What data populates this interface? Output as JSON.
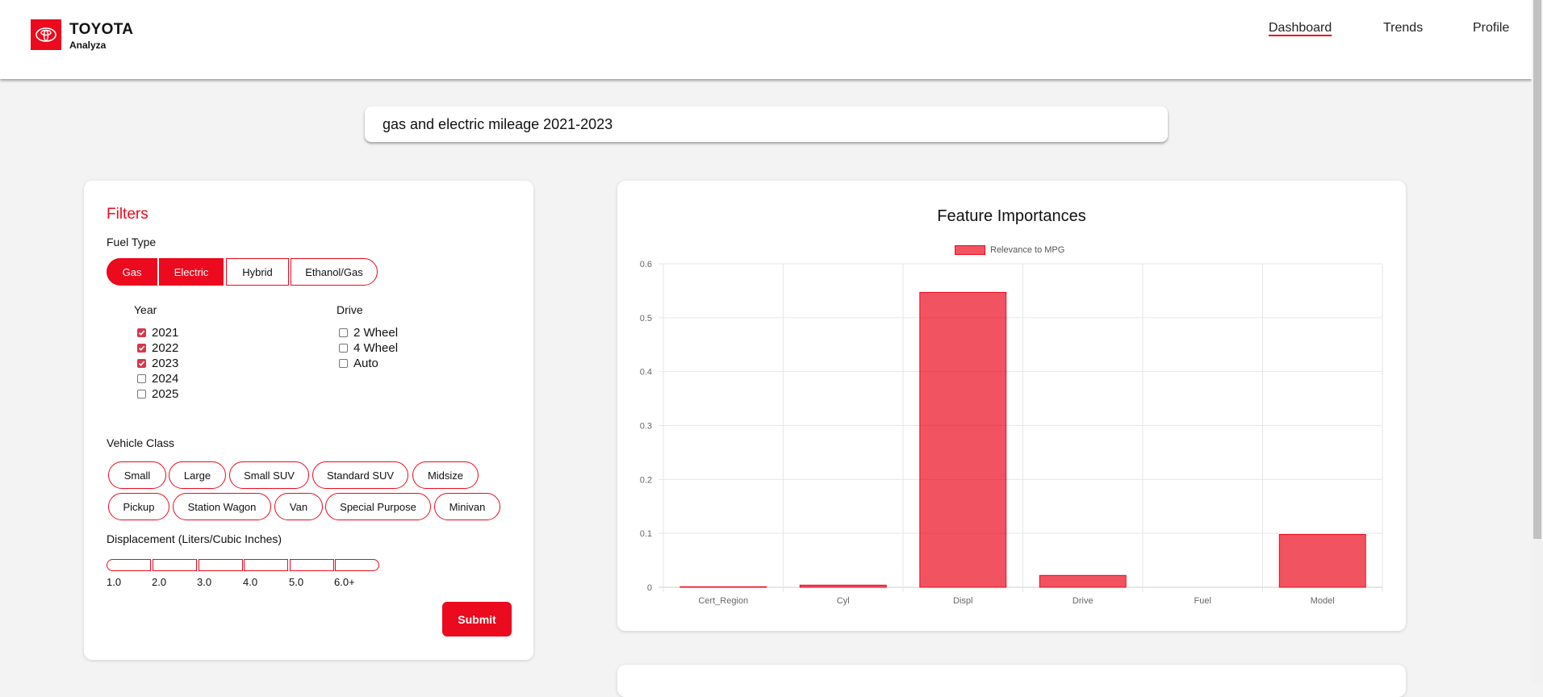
{
  "header": {
    "brand": "TOYOTA",
    "sub": "Analyza",
    "nav": [
      {
        "label": "Dashboard",
        "active": true
      },
      {
        "label": "Trends",
        "active": false
      },
      {
        "label": "Profile",
        "active": false
      }
    ],
    "logo_icon": "toyota-logo-icon"
  },
  "search": {
    "value": "gas and electric mileage 2021-2023"
  },
  "filters": {
    "title": "Filters",
    "fuel_label": "Fuel Type",
    "fuel_types": [
      {
        "label": "Gas",
        "selected": true
      },
      {
        "label": "Electric",
        "selected": true
      },
      {
        "label": "Hybrid",
        "selected": false
      },
      {
        "label": "Ethanol/Gas",
        "selected": false
      }
    ],
    "year_label": "Year",
    "years": [
      {
        "label": "2021",
        "checked": true
      },
      {
        "label": "2022",
        "checked": true
      },
      {
        "label": "2023",
        "checked": true
      },
      {
        "label": "2024",
        "checked": false
      },
      {
        "label": "2025",
        "checked": false
      }
    ],
    "drive_label": "Drive",
    "drives": [
      {
        "label": "2 Wheel",
        "checked": false
      },
      {
        "label": "4 Wheel",
        "checked": false
      },
      {
        "label": "Auto",
        "checked": false
      }
    ],
    "vehicle_class_label": "Vehicle Class",
    "vehicle_classes": [
      "Small",
      "Large",
      "Small SUV",
      "Standard SUV",
      "Midsize",
      "Pickup",
      "Station Wagon",
      "Van",
      "Special Purpose",
      "Minivan"
    ],
    "displacement_label": "Displacement (Liters/Cubic Inches)",
    "displacement_ticks": [
      "1.0",
      "2.0",
      "3.0",
      "4.0",
      "5.0",
      "6.0+"
    ],
    "submit_label": "Submit"
  },
  "colors": {
    "accent": "#eb0a1e",
    "bar_fill": "rgba(235,10,30,0.7)"
  },
  "chart_data": {
    "type": "bar",
    "title": "Feature Importances",
    "categories": [
      "Cert_Region",
      "Cyl",
      "Displ",
      "Drive",
      "Fuel",
      "Model"
    ],
    "series": [
      {
        "name": "Relevance to MPG",
        "values": [
          0.001,
          0.004,
          0.547,
          0.022,
          0.0,
          0.098
        ]
      }
    ],
    "ylim": [
      0,
      0.6
    ],
    "yticks": [
      "0",
      "0.1",
      "0.2",
      "0.3",
      "0.4",
      "0.5",
      "0.6"
    ],
    "grid": true,
    "legend": "top-center"
  }
}
